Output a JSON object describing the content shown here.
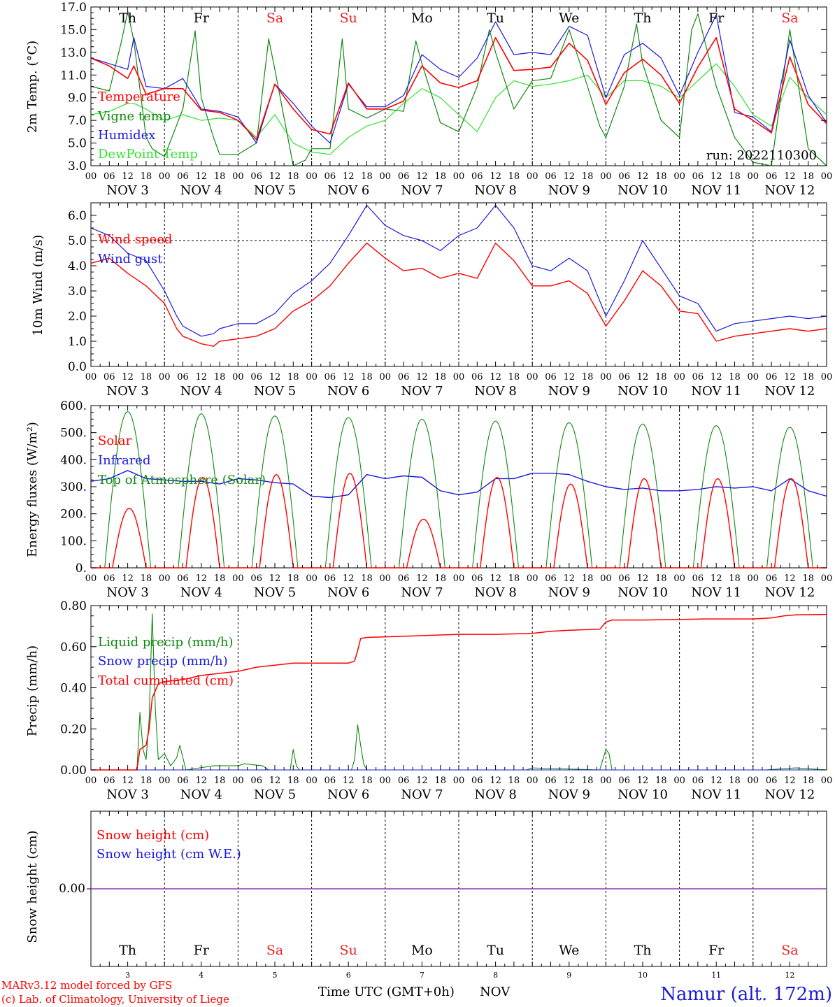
{
  "days": {
    "names": [
      "Th",
      "Fr",
      "Sa",
      "Su",
      "Mo",
      "Tu",
      "We",
      "Th",
      "Fr",
      "Sa"
    ],
    "weekend_flags": [
      false,
      false,
      true,
      true,
      false,
      false,
      false,
      false,
      false,
      true
    ],
    "dates": [
      "NOV  3",
      "NOV  4",
      "NOV  5",
      "NOV  6",
      "NOV  7",
      "NOV  8",
      "NOV  9",
      "NOV 10",
      "NOV 11",
      "NOV 12"
    ],
    "bottom_numbers": [
      "3",
      "4",
      "5",
      "6",
      "7",
      "8",
      "9",
      "10",
      "11",
      "12"
    ],
    "hour_labels": [
      "00",
      "06",
      "12",
      "18"
    ],
    "end_hour_label": "00"
  },
  "colors": {
    "red": "#ff0000",
    "green": "#118811",
    "blue": "#1a1adc",
    "lightgreen": "#33e033",
    "purple": "#8e3ab0",
    "weekend": "#ee2222"
  },
  "footer": {
    "credit_line1": "MARv3.12 model forced by GFS",
    "credit_line2": "(c) Lab. of Climatology, University of Liege",
    "axis_title": "Time UTC (GMT+0h)",
    "month": "NOV",
    "station": "Namur (alt. 172m)"
  },
  "chart_data": [
    {
      "type": "line",
      "id": "temp",
      "ylabel": "2m Temp. (°C)",
      "ylim": [
        3.0,
        17.0
      ],
      "yticks": [
        "3.0",
        "5.0",
        "7.0",
        "9.0",
        "11.0",
        "13.0",
        "15.0",
        "17.0"
      ],
      "annotation": "run: 2022110300",
      "x_unit": "hours since 2022-11-03 00 UTC",
      "legend": [
        "Temperature",
        "Vigne temp",
        "Humidex",
        "DewPoint Temp"
      ],
      "series": [
        {
          "name": "Temperature",
          "color": "#ff0000",
          "x": [
            0,
            6,
            12,
            14,
            18,
            24,
            30,
            36,
            42,
            48,
            54,
            60,
            66,
            72,
            78,
            84,
            90,
            96,
            102,
            108,
            114,
            120,
            126,
            132,
            138,
            144,
            150,
            156,
            162,
            168,
            174,
            180,
            186,
            192,
            198,
            204,
            210,
            216,
            222,
            228,
            234,
            240
          ],
          "y": [
            12.5,
            11.8,
            10.7,
            11.8,
            9.3,
            9.8,
            9.8,
            7.9,
            7.7,
            7.0,
            5.3,
            10.2,
            8.0,
            6.2,
            5.8,
            10.3,
            8.0,
            8.0,
            8.7,
            11.8,
            10.3,
            9.9,
            10.5,
            14.3,
            11.4,
            11.5,
            11.7,
            13.8,
            12.3,
            8.4,
            11.2,
            12.4,
            11.0,
            8.5,
            11.7,
            14.3,
            8.0,
            7.0,
            5.9,
            12.6,
            8.4,
            6.7
          ]
        },
        {
          "name": "Vigne temp",
          "color": "#118811",
          "x": [
            0,
            6,
            10,
            12,
            14,
            18,
            20,
            24,
            30,
            34,
            36,
            40,
            42,
            48,
            54,
            58,
            60,
            66,
            70,
            72,
            78,
            82,
            84,
            90,
            96,
            102,
            106,
            108,
            114,
            120,
            126,
            130,
            132,
            138,
            144,
            150,
            156,
            162,
            166,
            168,
            174,
            178,
            180,
            186,
            192,
            196,
            198,
            204,
            210,
            216,
            222,
            228,
            234,
            240
          ],
          "y": [
            10.0,
            9.6,
            14.0,
            16.6,
            14.0,
            5.5,
            4.5,
            3.8,
            8.0,
            14.9,
            9.0,
            5.5,
            4.0,
            4.0,
            5.0,
            14.2,
            11.5,
            3.0,
            3.5,
            4.5,
            4.5,
            14.2,
            8.0,
            7.2,
            8.0,
            7.8,
            14.0,
            12.0,
            6.8,
            6.0,
            10.0,
            15.0,
            13.0,
            8.0,
            10.5,
            10.7,
            15.0,
            10.0,
            6.5,
            5.5,
            10.0,
            15.5,
            12.0,
            7.0,
            5.5,
            15.0,
            16.4,
            10.0,
            5.5,
            3.3,
            3.0,
            15.0,
            4.5,
            3.0
          ]
        },
        {
          "name": "Humidex",
          "color": "#1a1adc",
          "x": [
            0,
            6,
            12,
            14,
            18,
            24,
            30,
            36,
            42,
            48,
            54,
            60,
            66,
            72,
            78,
            84,
            90,
            96,
            102,
            108,
            114,
            120,
            126,
            132,
            138,
            144,
            150,
            156,
            162,
            168,
            174,
            180,
            186,
            192,
            198,
            204,
            210,
            216,
            222,
            228,
            234,
            240
          ],
          "y": [
            12.5,
            12.0,
            11.5,
            14.3,
            10.0,
            9.8,
            10.7,
            8.0,
            7.8,
            7.3,
            5.0,
            10.2,
            8.5,
            6.5,
            5.0,
            10.2,
            8.2,
            8.2,
            9.2,
            12.8,
            11.5,
            10.8,
            12.5,
            15.7,
            12.8,
            13.0,
            12.8,
            15.3,
            14.5,
            9.0,
            12.8,
            13.8,
            12.5,
            9.2,
            13.0,
            16.3,
            7.7,
            7.3,
            6.0,
            14.1,
            9.2,
            6.8
          ]
        },
        {
          "name": "DewPoint Temp",
          "color": "#33e033",
          "x": [
            0,
            6,
            12,
            14,
            18,
            24,
            30,
            36,
            42,
            48,
            54,
            60,
            66,
            72,
            78,
            84,
            90,
            96,
            102,
            108,
            114,
            120,
            126,
            132,
            138,
            144,
            150,
            156,
            162,
            168,
            174,
            180,
            186,
            192,
            198,
            204,
            210,
            216,
            222,
            228,
            234,
            240
          ],
          "y": [
            7.5,
            7.8,
            8.5,
            8.5,
            8.0,
            7.0,
            7.5,
            7.0,
            7.2,
            7.0,
            5.5,
            7.5,
            5.0,
            4.2,
            4.0,
            5.5,
            6.5,
            7.0,
            8.5,
            9.8,
            9.0,
            7.5,
            6.0,
            9.0,
            10.5,
            10.0,
            10.2,
            10.5,
            11.0,
            9.0,
            10.5,
            10.5,
            10.0,
            9.0,
            10.5,
            12.0,
            10.0,
            7.5,
            6.5,
            10.8,
            9.0,
            7.5
          ]
        }
      ]
    },
    {
      "type": "line",
      "id": "wind",
      "ylabel": "10m Wind (m/s)",
      "ylim": [
        0.0,
        6.5
      ],
      "yticks": [
        "0.0",
        "1.0",
        "2.0",
        "3.0",
        "4.0",
        "5.0",
        "6.0"
      ],
      "legend": [
        "Wind speed",
        "Wind gust"
      ],
      "series": [
        {
          "name": "Wind speed",
          "color": "#ff0000",
          "x": [
            0,
            6,
            12,
            18,
            24,
            28,
            30,
            36,
            40,
            42,
            48,
            54,
            60,
            66,
            72,
            78,
            84,
            90,
            96,
            102,
            108,
            114,
            120,
            126,
            132,
            138,
            144,
            150,
            156,
            162,
            168,
            174,
            180,
            186,
            192,
            198,
            204,
            210,
            216,
            222,
            228,
            234,
            240
          ],
          "y": [
            4.1,
            4.3,
            3.7,
            3.2,
            2.5,
            1.5,
            1.2,
            0.9,
            0.8,
            1.0,
            1.1,
            1.2,
            1.5,
            2.2,
            2.6,
            3.2,
            4.1,
            4.9,
            4.3,
            3.8,
            3.9,
            3.5,
            3.7,
            3.5,
            4.9,
            4.2,
            3.2,
            3.2,
            3.4,
            2.9,
            1.6,
            2.6,
            3.8,
            3.2,
            2.2,
            2.1,
            1.0,
            1.2,
            1.3,
            1.4,
            1.5,
            1.4,
            1.5
          ]
        },
        {
          "name": "Wind gust",
          "color": "#1a1adc",
          "x": [
            0,
            6,
            12,
            18,
            24,
            28,
            30,
            36,
            40,
            42,
            48,
            54,
            60,
            66,
            72,
            78,
            84,
            90,
            96,
            102,
            108,
            114,
            120,
            126,
            132,
            138,
            144,
            150,
            156,
            162,
            168,
            174,
            180,
            186,
            192,
            198,
            204,
            210,
            216,
            222,
            228,
            234,
            240
          ],
          "y": [
            5.5,
            5.2,
            4.5,
            4.2,
            3.0,
            2.0,
            1.6,
            1.2,
            1.3,
            1.5,
            1.7,
            1.7,
            2.1,
            2.9,
            3.4,
            4.1,
            5.2,
            6.4,
            5.6,
            5.2,
            5.0,
            4.6,
            5.2,
            5.5,
            6.4,
            5.5,
            4.0,
            3.8,
            4.3,
            3.8,
            2.0,
            3.4,
            5.0,
            3.9,
            2.8,
            2.5,
            1.4,
            1.7,
            1.8,
            1.9,
            2.0,
            1.9,
            2.0
          ]
        }
      ]
    },
    {
      "type": "line",
      "id": "energy",
      "ylabel": "Energy fluxes (W/m²)",
      "ylim": [
        0,
        600
      ],
      "yticks": [
        "0.",
        "100.",
        "200.",
        "300.",
        "400.",
        "500.",
        "600."
      ],
      "legend": [
        "Solar",
        "Infrared",
        "Top of Atmosphere (Solar)"
      ],
      "series": [
        {
          "name": "Solar",
          "color": "#ff0000",
          "peaks": [
            220,
            335,
            345,
            350,
            180,
            335,
            310,
            330,
            330,
            330
          ],
          "shape": "day_bell"
        },
        {
          "name": "Infrared",
          "color": "#1a1adc",
          "x": [
            0,
            6,
            12,
            18,
            24,
            30,
            36,
            42,
            48,
            54,
            60,
            66,
            72,
            78,
            84,
            90,
            96,
            102,
            108,
            114,
            120,
            126,
            132,
            138,
            144,
            150,
            156,
            162,
            168,
            174,
            180,
            186,
            192,
            198,
            204,
            210,
            216,
            222,
            228,
            234,
            240
          ],
          "y": [
            320,
            330,
            360,
            330,
            325,
            320,
            320,
            310,
            330,
            325,
            315,
            310,
            265,
            260,
            270,
            345,
            330,
            340,
            335,
            285,
            270,
            280,
            330,
            330,
            350,
            350,
            345,
            320,
            300,
            290,
            295,
            285,
            285,
            290,
            300,
            295,
            300,
            285,
            330,
            285,
            265
          ]
        },
        {
          "name": "Top of Atmosphere (Solar)",
          "color": "#118811",
          "peaks": [
            578,
            570,
            562,
            556,
            550,
            543,
            537,
            532,
            526,
            520
          ],
          "shape": "toa_bell"
        }
      ]
    },
    {
      "type": "line",
      "id": "precip",
      "ylabel": "Precip (mm/h)",
      "ylim": [
        0.0,
        0.8
      ],
      "yticks": [
        "0.00",
        "0.20",
        "0.40",
        "0.60",
        "0.80"
      ],
      "legend": [
        "Liquid precip (mm/h)",
        "Snow precip (mm/h)",
        "Total cumulated (cm)"
      ],
      "series": [
        {
          "name": "Liquid precip (mm/h)",
          "color": "#118811",
          "x": [
            0,
            15,
            16,
            17,
            18,
            19,
            20,
            21,
            22,
            24,
            26,
            28,
            29,
            31,
            40,
            48,
            50,
            56,
            58,
            62,
            65,
            66,
            67,
            68,
            70,
            85,
            86,
            87,
            88,
            89,
            90,
            142,
            144,
            166,
            167,
            168,
            169,
            170,
            220,
            230,
            240
          ],
          "y": [
            0,
            0,
            0.28,
            0.1,
            0.05,
            0.25,
            0.76,
            0.3,
            0.05,
            0.08,
            0.02,
            0.06,
            0.12,
            0,
            0.02,
            0.02,
            0.03,
            0.02,
            0,
            0,
            0,
            0.1,
            0.02,
            0,
            0,
            0,
            0.05,
            0.22,
            0.12,
            0.03,
            0,
            0,
            0.01,
            0,
            0.05,
            0.1,
            0.08,
            0,
            0,
            0.01,
            0
          ]
        },
        {
          "name": "Snow precip (mm/h)",
          "color": "#1a1adc",
          "x": [
            0,
            240
          ],
          "y": [
            0,
            0
          ]
        },
        {
          "name": "Total cumulated (cm)",
          "color": "#ff0000",
          "x": [
            0,
            15,
            16,
            17,
            18,
            19,
            20,
            22,
            24,
            30,
            36,
            42,
            48,
            54,
            60,
            66,
            72,
            78,
            84,
            86,
            87,
            88,
            90,
            100,
            110,
            120,
            132,
            144,
            150,
            156,
            166,
            168,
            170,
            180,
            190,
            200,
            216,
            222,
            226,
            230,
            240
          ],
          "y": [
            0,
            0,
            0.1,
            0.11,
            0.12,
            0.2,
            0.35,
            0.42,
            0.43,
            0.44,
            0.46,
            0.47,
            0.48,
            0.5,
            0.51,
            0.52,
            0.52,
            0.52,
            0.52,
            0.53,
            0.58,
            0.64,
            0.645,
            0.65,
            0.655,
            0.66,
            0.66,
            0.665,
            0.675,
            0.68,
            0.685,
            0.72,
            0.73,
            0.73,
            0.732,
            0.735,
            0.735,
            0.74,
            0.75,
            0.755,
            0.757
          ]
        }
      ]
    },
    {
      "type": "line",
      "id": "snow",
      "ylabel": "Snow height (cm)",
      "ytick": "0.00",
      "legend": [
        "Snow height (cm)",
        "Snow height (cm W.E.)"
      ],
      "series": [
        {
          "name": "Snow height (cm)",
          "color": "#ff0000",
          "x": [
            0,
            240
          ],
          "y": [
            0,
            0
          ]
        },
        {
          "name": "Snow height (cm W.E.)",
          "color": "#1a1adc",
          "x": [
            0,
            240
          ],
          "y": [
            0,
            0
          ]
        }
      ]
    }
  ]
}
